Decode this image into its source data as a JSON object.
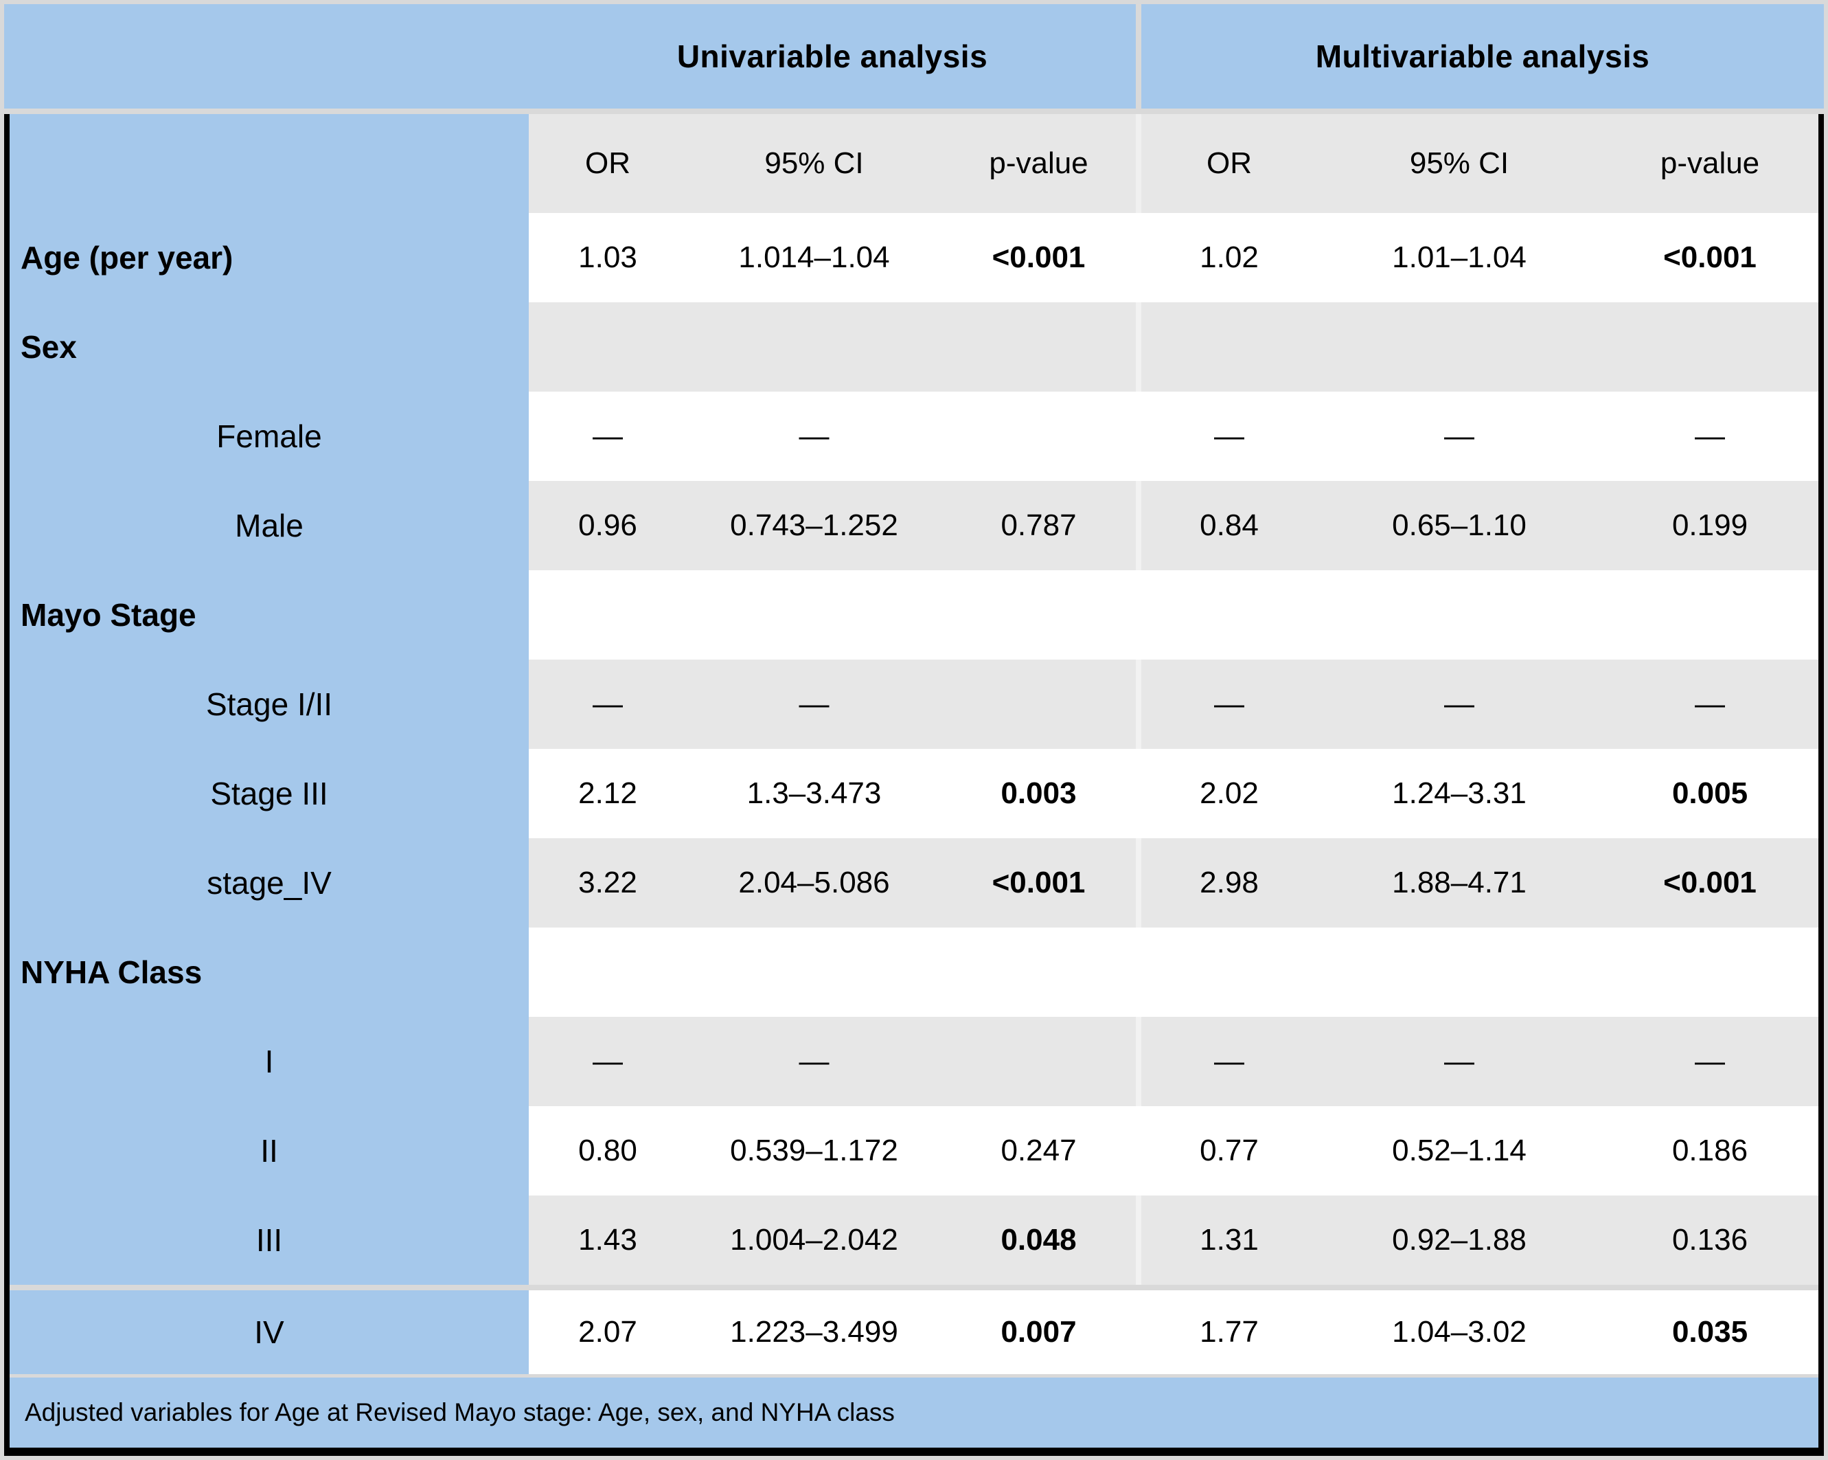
{
  "colors": {
    "header_blue": "#a5c8eb",
    "row_gray": "#e7e7e7",
    "row_white": "#ffffff",
    "frame_gray": "#d9d9d9",
    "frame_black": "#000000",
    "text": "#000000"
  },
  "chart_data": {
    "type": "table",
    "group_headers": [
      "Univariable analysis",
      "Multivariable analysis"
    ],
    "columns": [
      "",
      "OR",
      "95% CI",
      "p-value",
      "OR",
      "95% CI",
      "p-value"
    ],
    "rows": [
      {
        "label": "Age (per year)",
        "label_bold": true,
        "values": [
          "1.03",
          "1.014–1.04",
          "<0.001",
          "1.02",
          "1.01–1.04",
          "<0.001"
        ],
        "bold": {
          "2": true,
          "5": true
        }
      },
      {
        "label": "Sex",
        "label_bold": true,
        "values": [
          "",
          "",
          "",
          "",
          "",
          ""
        ]
      },
      {
        "label": "Female",
        "values": [
          "—",
          "—",
          "",
          "—",
          "—",
          "—"
        ]
      },
      {
        "label": "Male",
        "values": [
          "0.96",
          "0.743–1.252",
          "0.787",
          "0.84",
          "0.65–1.10",
          "0.199"
        ]
      },
      {
        "label": "Mayo Stage",
        "label_bold": true,
        "values": [
          "",
          "",
          "",
          "",
          "",
          ""
        ]
      },
      {
        "label": "Stage I/II",
        "values": [
          "—",
          "—",
          "",
          "—",
          "—",
          "—"
        ]
      },
      {
        "label": "Stage III",
        "values": [
          "2.12",
          "1.3–3.473",
          "0.003",
          "2.02",
          "1.24–3.31",
          "0.005"
        ],
        "bold": {
          "2": true,
          "5": true
        }
      },
      {
        "label": "stage_IV",
        "values": [
          "3.22",
          "2.04–5.086",
          "<0.001",
          "2.98",
          "1.88–4.71",
          "<0.001"
        ],
        "bold": {
          "2": true,
          "5": true
        }
      },
      {
        "label": "NYHA Class",
        "label_bold": true,
        "values": [
          "",
          "",
          "",
          "",
          "",
          ""
        ]
      },
      {
        "label": "I",
        "values": [
          "—",
          "—",
          "",
          "—",
          "—",
          "—"
        ]
      },
      {
        "label": "II",
        "values": [
          "0.80",
          "0.539–1.172",
          "0.247",
          "0.77",
          "0.52–1.14",
          "0.186"
        ]
      },
      {
        "label": "III",
        "values": [
          "1.43",
          "1.004–2.042",
          "0.048",
          "1.31",
          "0.92–1.88",
          "0.136"
        ],
        "bold": {
          "2": true
        }
      },
      {
        "label": "IV",
        "values": [
          "2.07",
          "1.223–3.499",
          "0.007",
          "1.77",
          "1.04–3.02",
          "0.035"
        ],
        "bold": {
          "2": true,
          "5": true
        }
      }
    ],
    "footnote": "Adjusted variables for Age at Revised Mayo stage: Age, sex, and NYHA class"
  }
}
